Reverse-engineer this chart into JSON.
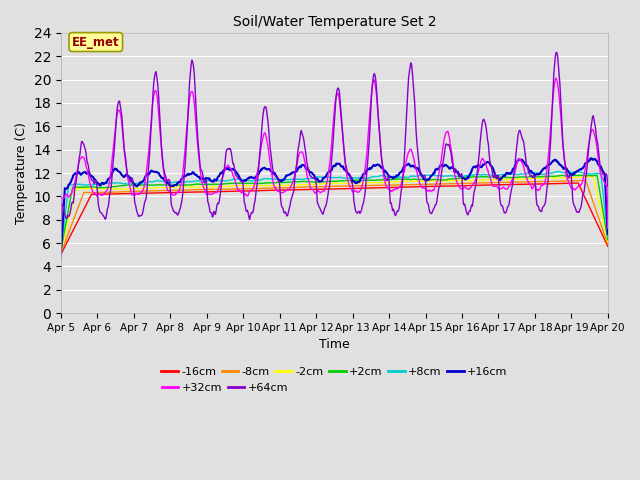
{
  "title": "Soil/Water Temperature Set 2",
  "xlabel": "Time",
  "ylabel": "Temperature (C)",
  "ylim": [
    0,
    24
  ],
  "yticks": [
    0,
    2,
    4,
    6,
    8,
    10,
    12,
    14,
    16,
    18,
    20,
    22,
    24
  ],
  "x_labels": [
    "Apr 5",
    "Apr 6",
    "Apr 7",
    "Apr 8",
    "Apr 9",
    "Apr 10",
    "Apr 11",
    "Apr 12",
    "Apr 13",
    "Apr 14",
    "Apr 15",
    "Apr 16",
    "Apr 17",
    "Apr 18",
    "Apr 19",
    "Apr 20"
  ],
  "background_color": "#e0e0e0",
  "plot_bg_color": "#e0e0e0",
  "fig_bg_color": "#e0e0e0",
  "series": [
    {
      "label": "-16cm",
      "color": "#ff0000",
      "lw": 1.0
    },
    {
      "label": "-8cm",
      "color": "#ff8800",
      "lw": 1.0
    },
    {
      "label": "-2cm",
      "color": "#ffff00",
      "lw": 1.0
    },
    {
      "label": "+2cm",
      "color": "#00cc00",
      "lw": 1.0
    },
    {
      "label": "+8cm",
      "color": "#00cccc",
      "lw": 1.0
    },
    {
      "label": "+16cm",
      "color": "#0000cc",
      "lw": 1.5
    },
    {
      "label": "+32cm",
      "color": "#ff00ff",
      "lw": 1.0
    },
    {
      "label": "+64cm",
      "color": "#8800cc",
      "lw": 1.0
    }
  ],
  "annotation_text": "EE_met",
  "grid_color": "#ffffff",
  "legend_ncol_row1": 6,
  "legend_ncol_row2": 2
}
